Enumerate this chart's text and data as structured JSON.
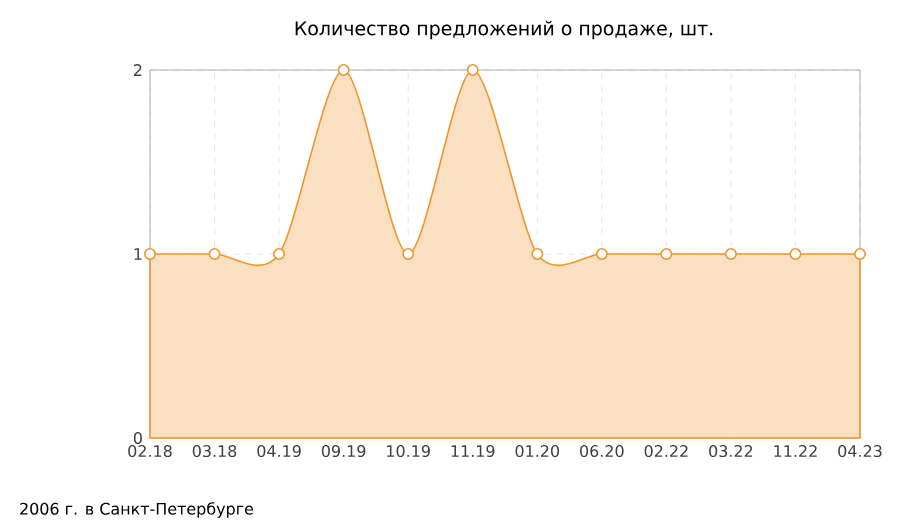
{
  "chart_data": {
    "type": "area",
    "title": "Количество предложений о продаже, шт.",
    "categories": [
      "02.18",
      "03.18",
      "04.19",
      "09.19",
      "10.19",
      "11.19",
      "01.20",
      "06.20",
      "02.22",
      "03.22",
      "11.22",
      "04.23"
    ],
    "series": [
      {
        "color": "#f0952e",
        "values": [
          1,
          1,
          1,
          2,
          1,
          2,
          1,
          1,
          1,
          1,
          1,
          1
        ]
      }
    ],
    "ylim": [
      0,
      2
    ],
    "yticks": [
      0,
      1,
      2
    ],
    "grid": true,
    "marker": "circle",
    "annotations": [
      "2006 г. в Санкт-Петербурге"
    ]
  }
}
